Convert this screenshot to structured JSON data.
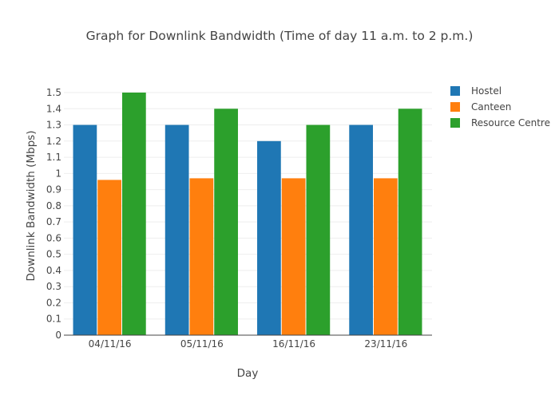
{
  "chart_data": {
    "type": "bar",
    "title": "Graph for Downlink Bandwidth (Time of day  11 a.m. to  2 p.m.)",
    "xlabel": "Day",
    "ylabel": "Downlink Bandwidth (Mbps)",
    "categories": [
      "04/11/16",
      "05/11/16",
      "16/11/16",
      "23/11/16"
    ],
    "series": [
      {
        "name": "Hostel",
        "color": "#1f77b4",
        "values": [
          1.3,
          1.3,
          1.2,
          1.3
        ]
      },
      {
        "name": "Canteen",
        "color": "#ff7f0e",
        "values": [
          0.96,
          0.97,
          0.97,
          0.97
        ]
      },
      {
        "name": "Resource Centre",
        "color": "#2ca02c",
        "values": [
          1.5,
          1.4,
          1.3,
          1.4
        ]
      }
    ],
    "ylim": [
      0,
      1.5
    ],
    "yticks": [
      "0",
      "0.1",
      "0.2",
      "0.3",
      "0.4",
      "0.5",
      "0.6",
      "0.7",
      "0.8",
      "0.9",
      "1",
      "1.1",
      "1.2",
      "1.3",
      "1.4",
      "1.5"
    ],
    "grid": true,
    "legend_position": "top-right"
  }
}
